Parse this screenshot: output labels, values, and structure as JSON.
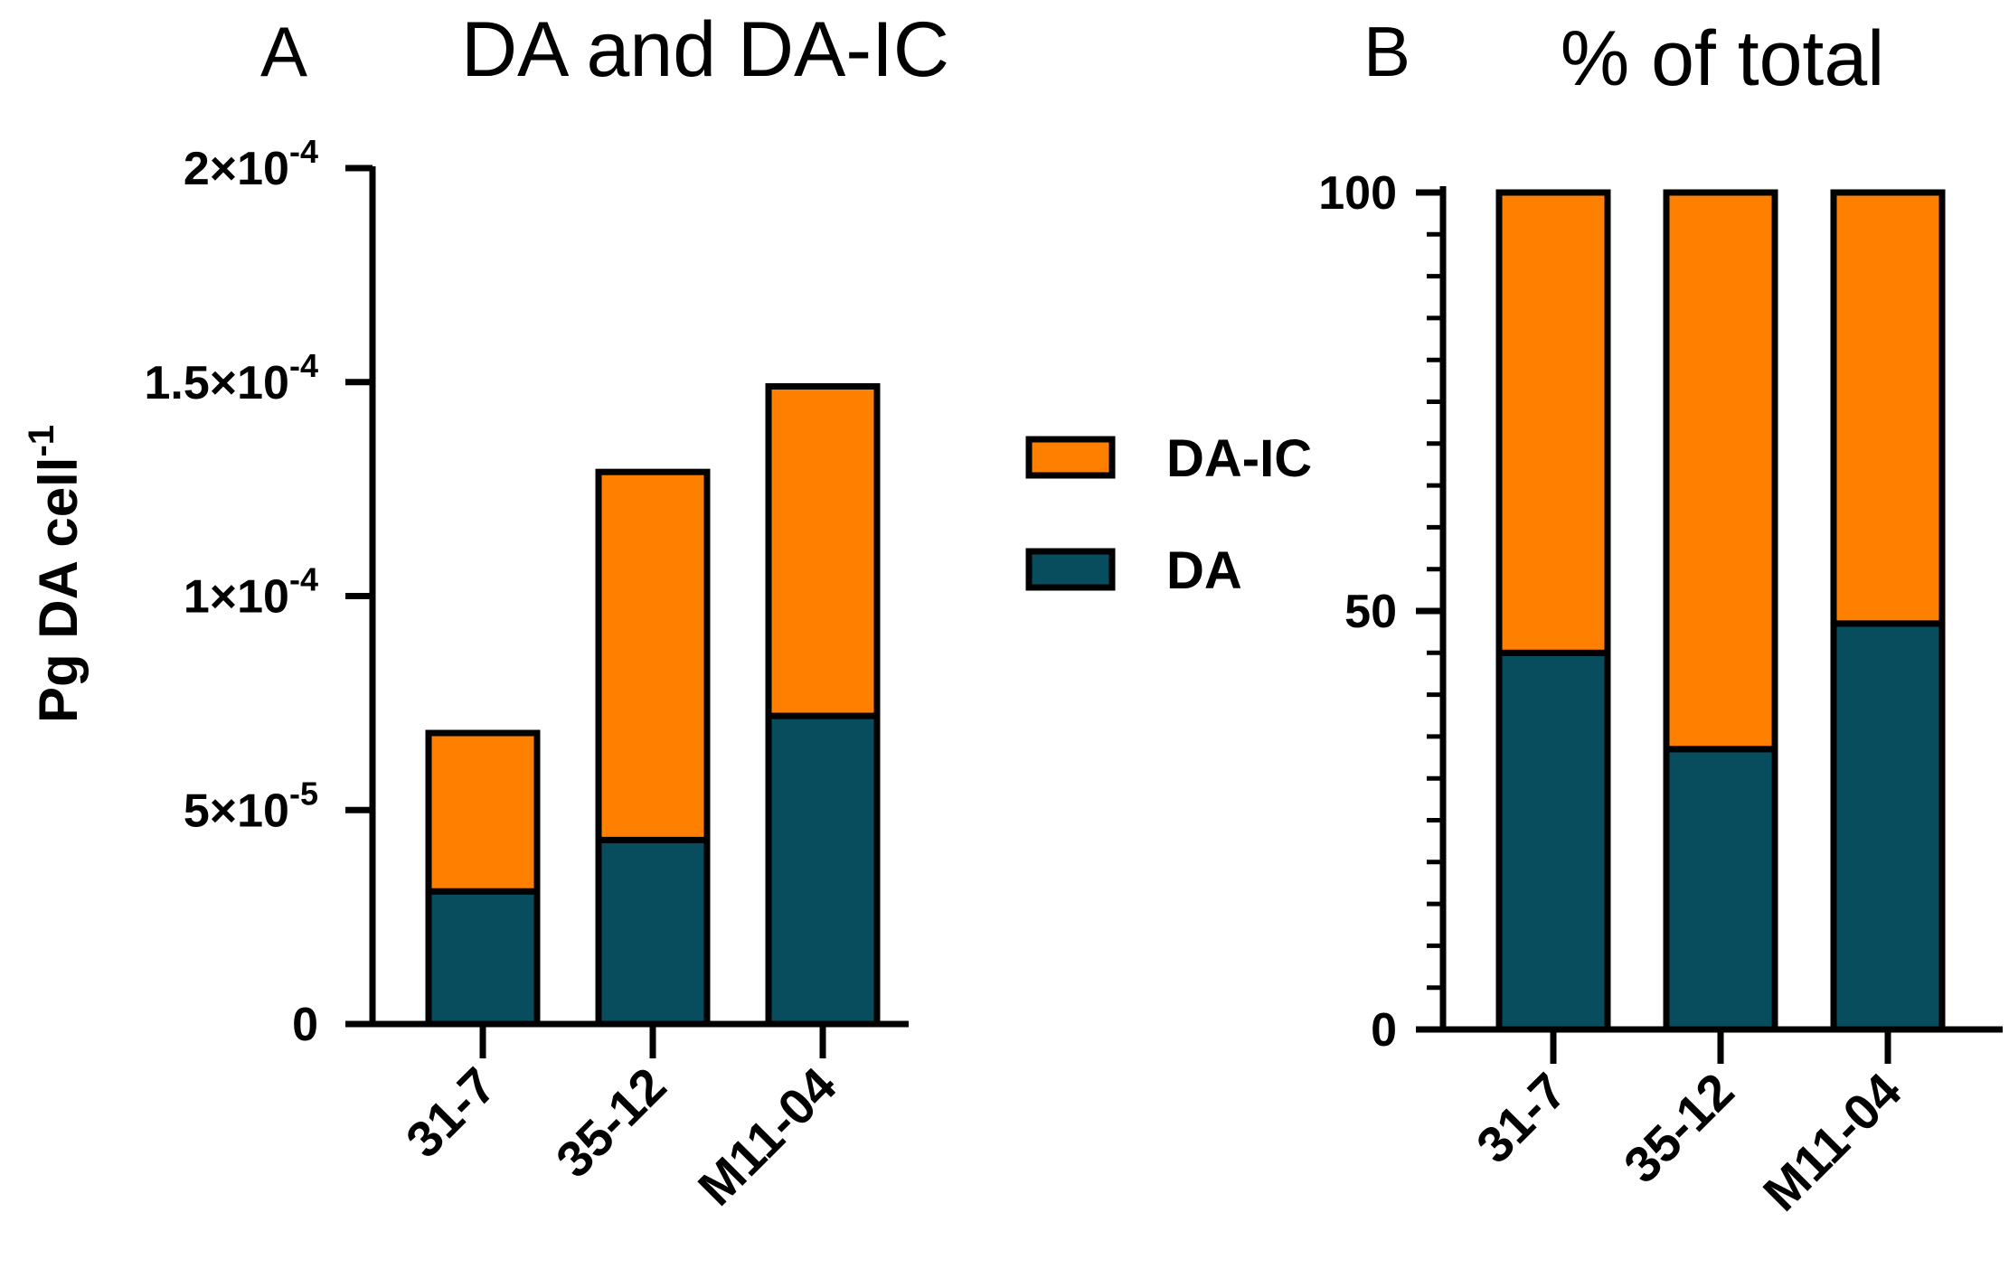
{
  "colors": {
    "da": "#074D5E",
    "da_ic": "#FF8000",
    "stroke": "#000000"
  },
  "chart_data": [
    {
      "type": "bar",
      "stacked": true,
      "panel_label": "A",
      "title": "DA and DA-IC",
      "ylabel": "Pg DA cell",
      "ylabel_superscript": "-1",
      "xlabel": "",
      "categories": [
        "31-7",
        "35-12",
        "M11-04"
      ],
      "series": [
        {
          "name": "DA",
          "values": [
            3.1e-05,
            4.3e-05,
            7.2e-05
          ]
        },
        {
          "name": "DA-IC",
          "values": [
            3.7e-05,
            8.6e-05,
            7.7e-05
          ]
        }
      ],
      "ylim": [
        0,
        0.0002
      ],
      "yticks": [
        {
          "value": 0,
          "mant": "0",
          "exp": ""
        },
        {
          "value": 5e-05,
          "mant": "5×10",
          "exp": "-5"
        },
        {
          "value": 0.0001,
          "mant": "1×10",
          "exp": "-4"
        },
        {
          "value": 0.00015,
          "mant": "1.5×10",
          "exp": "-4"
        },
        {
          "value": 0.0002,
          "mant": "2×10",
          "exp": "-4"
        }
      ]
    },
    {
      "type": "bar",
      "stacked": true,
      "panel_label": "B",
      "title": "% of total",
      "ylabel": "",
      "xlabel": "",
      "categories": [
        "31-7",
        "35-12",
        "M11-04"
      ],
      "series": [
        {
          "name": "DA",
          "values": [
            45,
            33.5,
            48.5
          ]
        },
        {
          "name": "DA-IC",
          "values": [
            55,
            66.5,
            51.5
          ]
        }
      ],
      "ylim": [
        0,
        100
      ],
      "yticks": [
        {
          "value": 0,
          "mant": "0",
          "exp": ""
        },
        {
          "value": 50,
          "mant": "50",
          "exp": ""
        },
        {
          "value": 100,
          "mant": "100",
          "exp": ""
        }
      ],
      "minor_tick_step": 5
    }
  ],
  "legend": {
    "position": "center",
    "items": [
      "DA-IC",
      "DA"
    ]
  }
}
